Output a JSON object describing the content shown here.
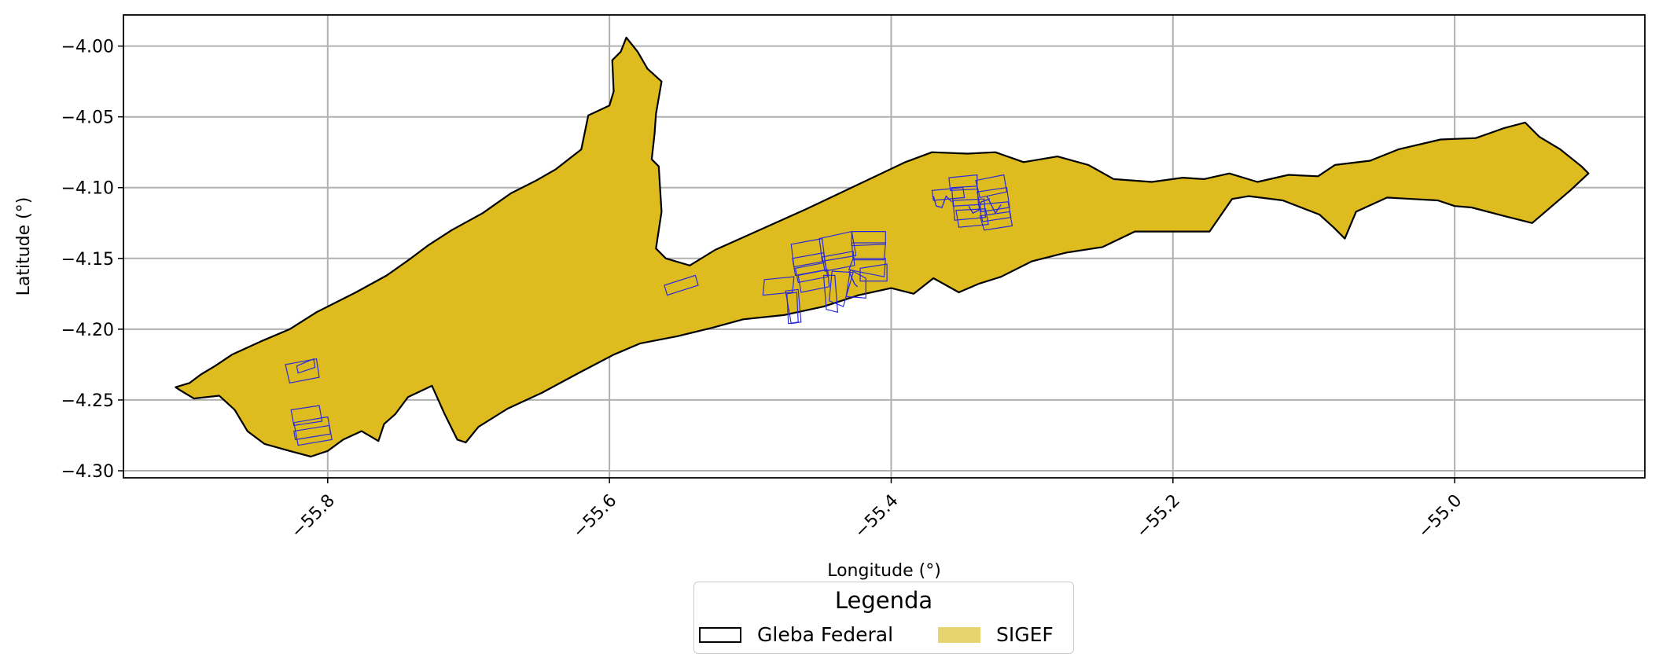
{
  "chart_data": {
    "type": "map",
    "xlabel": "Longitude (°)",
    "ylabel": "Latitude (°)",
    "xlim": [
      -55.945,
      -54.865
    ],
    "ylim": [
      -4.305,
      -3.978
    ],
    "x_ticks": [
      -55.8,
      -55.6,
      -55.4,
      -55.2,
      -55.0
    ],
    "x_tick_labels": [
      "−55.8",
      "−55.6",
      "−55.4",
      "−55.2",
      "−55.0"
    ],
    "y_ticks": [
      -4.0,
      -4.05,
      -4.1,
      -4.15,
      -4.2,
      -4.25,
      -4.3
    ],
    "y_tick_labels": [
      "−4.00",
      "−4.05",
      "−4.10",
      "−4.15",
      "−4.20",
      "−4.25",
      "−4.30"
    ],
    "grid": true,
    "legend_placement": "bottom-center",
    "legend": {
      "title": "Legenda",
      "entries": [
        {
          "label": "Gleba Federal",
          "style": "outline",
          "color": "#000000"
        },
        {
          "label": "SIGEF",
          "style": "fill",
          "color": "#e8d371"
        }
      ]
    },
    "colors": {
      "gleba_fill": "#debc1f",
      "gleba_edge": "#000000",
      "sigef_edge": "#2b2bd9",
      "grid": "#b0b0b0"
    },
    "gleba_federal": [
      [
        -55.905,
        -4.243
      ],
      [
        -55.895,
        -4.249
      ],
      [
        -55.877,
        -4.247
      ],
      [
        -55.866,
        -4.257
      ],
      [
        -55.857,
        -4.272
      ],
      [
        -55.845,
        -4.281
      ],
      [
        -55.827,
        -4.286
      ],
      [
        -55.812,
        -4.29
      ],
      [
        -55.8,
        -4.286
      ],
      [
        -55.789,
        -4.278
      ],
      [
        -55.776,
        -4.272
      ],
      [
        -55.764,
        -4.279
      ],
      [
        -55.76,
        -4.267
      ],
      [
        -55.752,
        -4.26
      ],
      [
        -55.743,
        -4.248
      ],
      [
        -55.726,
        -4.24
      ],
      [
        -55.717,
        -4.26
      ],
      [
        -55.708,
        -4.278
      ],
      [
        -55.702,
        -4.28
      ],
      [
        -55.693,
        -4.269
      ],
      [
        -55.672,
        -4.256
      ],
      [
        -55.648,
        -4.245
      ],
      [
        -55.62,
        -4.23
      ],
      [
        -55.597,
        -4.218
      ],
      [
        -55.578,
        -4.21
      ],
      [
        -55.552,
        -4.205
      ],
      [
        -55.527,
        -4.199
      ],
      [
        -55.505,
        -4.193
      ],
      [
        -55.476,
        -4.19
      ],
      [
        -55.448,
        -4.184
      ],
      [
        -55.423,
        -4.176
      ],
      [
        -55.4,
        -4.171
      ],
      [
        -55.384,
        -4.175
      ],
      [
        -55.37,
        -4.164
      ],
      [
        -55.352,
        -4.174
      ],
      [
        -55.338,
        -4.168
      ],
      [
        -55.322,
        -4.163
      ],
      [
        -55.3,
        -4.152
      ],
      [
        -55.276,
        -4.146
      ],
      [
        -55.25,
        -4.142
      ],
      [
        -55.227,
        -4.131
      ],
      [
        -55.196,
        -4.131
      ],
      [
        -55.174,
        -4.131
      ],
      [
        -55.158,
        -4.108
      ],
      [
        -55.146,
        -4.106
      ],
      [
        -55.122,
        -4.109
      ],
      [
        -55.096,
        -4.119
      ],
      [
        -55.086,
        -4.128
      ],
      [
        -55.078,
        -4.136
      ],
      [
        -55.07,
        -4.117
      ],
      [
        -55.048,
        -4.107
      ],
      [
        -55.012,
        -4.109
      ],
      [
        -55.0,
        -4.113
      ],
      [
        -54.988,
        -4.114
      ],
      [
        -54.965,
        -4.12
      ],
      [
        -54.945,
        -4.125
      ],
      [
        -54.918,
        -4.102
      ],
      [
        -54.905,
        -4.09
      ],
      [
        -54.91,
        -4.085
      ],
      [
        -54.925,
        -4.073
      ],
      [
        -54.94,
        -4.064
      ],
      [
        -54.95,
        -4.054
      ],
      [
        -54.965,
        -4.058
      ],
      [
        -54.985,
        -4.065
      ],
      [
        -55.01,
        -4.066
      ],
      [
        -55.04,
        -4.073
      ],
      [
        -55.06,
        -4.081
      ],
      [
        -55.085,
        -4.084
      ],
      [
        -55.097,
        -4.092
      ],
      [
        -55.118,
        -4.091
      ],
      [
        -55.14,
        -4.096
      ],
      [
        -55.16,
        -4.09
      ],
      [
        -55.178,
        -4.094
      ],
      [
        -55.193,
        -4.093
      ],
      [
        -55.215,
        -4.096
      ],
      [
        -55.242,
        -4.094
      ],
      [
        -55.26,
        -4.084
      ],
      [
        -55.282,
        -4.078
      ],
      [
        -55.306,
        -4.082
      ],
      [
        -55.326,
        -4.075
      ],
      [
        -55.346,
        -4.076
      ],
      [
        -55.371,
        -4.075
      ],
      [
        -55.39,
        -4.082
      ],
      [
        -55.46,
        -4.115
      ],
      [
        -55.525,
        -4.144
      ],
      [
        -55.543,
        -4.155
      ],
      [
        -55.56,
        -4.15
      ],
      [
        -55.567,
        -4.143
      ],
      [
        -55.563,
        -4.117
      ],
      [
        -55.565,
        -4.085
      ],
      [
        -55.57,
        -4.08
      ],
      [
        -55.568,
        -4.062
      ],
      [
        -55.567,
        -4.048
      ],
      [
        -55.563,
        -4.025
      ],
      [
        -55.573,
        -4.016
      ],
      [
        -55.58,
        -4.004
      ],
      [
        -55.588,
        -3.994
      ],
      [
        -55.592,
        -4.004
      ],
      [
        -55.598,
        -4.01
      ],
      [
        -55.597,
        -4.032
      ],
      [
        -55.6,
        -4.042
      ],
      [
        -55.615,
        -4.049
      ],
      [
        -55.62,
        -4.073
      ],
      [
        -55.638,
        -4.087
      ],
      [
        -55.652,
        -4.095
      ],
      [
        -55.67,
        -4.104
      ],
      [
        -55.69,
        -4.118
      ],
      [
        -55.712,
        -4.13
      ],
      [
        -55.729,
        -4.141
      ],
      [
        -55.741,
        -4.15
      ],
      [
        -55.758,
        -4.162
      ],
      [
        -55.78,
        -4.174
      ],
      [
        -55.808,
        -4.188
      ],
      [
        -55.827,
        -4.2
      ],
      [
        -55.846,
        -4.208
      ],
      [
        -55.868,
        -4.218
      ],
      [
        -55.88,
        -4.226
      ],
      [
        -55.89,
        -4.232
      ],
      [
        -55.898,
        -4.238
      ],
      [
        -55.908,
        -4.241
      ]
    ],
    "sigef_parcels": [
      [
        [
          -55.83,
          -4.225
        ],
        [
          -55.808,
          -4.221
        ],
        [
          -55.806,
          -4.234
        ],
        [
          -55.827,
          -4.238
        ]
      ],
      [
        [
          -55.822,
          -4.226
        ],
        [
          -55.81,
          -4.221
        ],
        [
          -55.809,
          -4.227
        ],
        [
          -55.821,
          -4.231
        ]
      ],
      [
        [
          -55.826,
          -4.257
        ],
        [
          -55.806,
          -4.254
        ],
        [
          -55.804,
          -4.265
        ],
        [
          -55.824,
          -4.268
        ]
      ],
      [
        [
          -55.824,
          -4.266
        ],
        [
          -55.8,
          -4.262
        ],
        [
          -55.797,
          -4.278
        ],
        [
          -55.821,
          -4.282
        ]
      ],
      [
        [
          -55.824,
          -4.272
        ],
        [
          -55.799,
          -4.268
        ],
        [
          -55.798,
          -4.274
        ],
        [
          -55.823,
          -4.278
        ]
      ],
      [
        [
          -55.561,
          -4.169
        ],
        [
          -55.539,
          -4.162
        ],
        [
          -55.537,
          -4.169
        ],
        [
          -55.559,
          -4.176
        ]
      ],
      [
        [
          -55.49,
          -4.165
        ],
        [
          -55.469,
          -4.163
        ],
        [
          -55.47,
          -4.174
        ],
        [
          -55.491,
          -4.176
        ]
      ],
      [
        [
          -55.475,
          -4.173
        ],
        [
          -55.466,
          -4.172
        ],
        [
          -55.464,
          -4.195
        ],
        [
          -55.471,
          -4.196
        ]
      ],
      [
        [
          -55.474,
          -4.175
        ],
        [
          -55.467,
          -4.174
        ],
        [
          -55.466,
          -4.195
        ],
        [
          -55.473,
          -4.196
        ]
      ],
      [
        [
          -55.471,
          -4.14
        ],
        [
          -55.449,
          -4.136
        ],
        [
          -55.447,
          -4.152
        ],
        [
          -55.469,
          -4.156
        ]
      ],
      [
        [
          -55.47,
          -4.15
        ],
        [
          -55.448,
          -4.146
        ],
        [
          -55.446,
          -4.158
        ],
        [
          -55.468,
          -4.162
        ]
      ],
      [
        [
          -55.468,
          -4.157
        ],
        [
          -55.447,
          -4.153
        ],
        [
          -55.445,
          -4.163
        ],
        [
          -55.466,
          -4.167
        ]
      ],
      [
        [
          -55.466,
          -4.162
        ],
        [
          -55.445,
          -4.158
        ],
        [
          -55.444,
          -4.17
        ],
        [
          -55.464,
          -4.174
        ]
      ],
      [
        [
          -55.451,
          -4.136
        ],
        [
          -55.428,
          -4.131
        ],
        [
          -55.425,
          -4.148
        ],
        [
          -55.449,
          -4.152
        ]
      ],
      [
        [
          -55.449,
          -4.149
        ],
        [
          -55.427,
          -4.145
        ],
        [
          -55.426,
          -4.155
        ],
        [
          -55.447,
          -4.159
        ]
      ],
      [
        [
          -55.428,
          -4.131
        ],
        [
          -55.404,
          -4.131
        ],
        [
          -55.404,
          -4.14
        ],
        [
          -55.428,
          -4.141
        ]
      ],
      [
        [
          -55.428,
          -4.139
        ],
        [
          -55.404,
          -4.139
        ],
        [
          -55.405,
          -4.151
        ],
        [
          -55.427,
          -4.151
        ]
      ],
      [
        [
          -55.427,
          -4.15
        ],
        [
          -55.404,
          -4.15
        ],
        [
          -55.405,
          -4.163
        ],
        [
          -55.43,
          -4.158
        ]
      ],
      [
        [
          -55.429,
          -4.158
        ],
        [
          -55.418,
          -4.164
        ],
        [
          -55.418,
          -4.178
        ],
        [
          -55.432,
          -4.177
        ]
      ],
      [
        [
          -55.442,
          -4.159
        ],
        [
          -55.427,
          -4.16
        ],
        [
          -55.434,
          -4.184
        ],
        [
          -55.444,
          -4.18
        ]
      ],
      [
        [
          -55.448,
          -4.162
        ],
        [
          -55.44,
          -4.162
        ],
        [
          -55.438,
          -4.188
        ],
        [
          -55.446,
          -4.186
        ]
      ],
      [
        [
          -55.422,
          -4.157
        ],
        [
          -55.403,
          -4.154
        ],
        [
          -55.403,
          -4.166
        ],
        [
          -55.422,
          -4.166
        ]
      ],
      [
        [
          -55.371,
          -4.102
        ],
        [
          -55.349,
          -4.1
        ],
        [
          -55.348,
          -4.107
        ],
        [
          -55.37,
          -4.109
        ]
      ],
      [
        [
          -55.359,
          -4.093
        ],
        [
          -55.339,
          -4.091
        ],
        [
          -55.339,
          -4.101
        ],
        [
          -55.358,
          -4.102
        ]
      ],
      [
        [
          -55.357,
          -4.1
        ],
        [
          -55.339,
          -4.099
        ],
        [
          -55.338,
          -4.112
        ],
        [
          -55.356,
          -4.113
        ]
      ],
      [
        [
          -55.356,
          -4.109
        ],
        [
          -55.334,
          -4.108
        ],
        [
          -55.333,
          -4.121
        ],
        [
          -55.355,
          -4.123
        ]
      ],
      [
        [
          -55.354,
          -4.116
        ],
        [
          -55.333,
          -4.115
        ],
        [
          -55.331,
          -4.126
        ],
        [
          -55.352,
          -4.128
        ]
      ],
      [
        [
          -55.34,
          -4.095
        ],
        [
          -55.32,
          -4.091
        ],
        [
          -55.318,
          -4.103
        ],
        [
          -55.337,
          -4.107
        ]
      ],
      [
        [
          -55.339,
          -4.103
        ],
        [
          -55.318,
          -4.1
        ],
        [
          -55.316,
          -4.114
        ],
        [
          -55.336,
          -4.117
        ]
      ],
      [
        [
          -55.338,
          -4.112
        ],
        [
          -55.317,
          -4.11
        ],
        [
          -55.315,
          -4.121
        ],
        [
          -55.335,
          -4.124
        ]
      ],
      [
        [
          -55.337,
          -4.12
        ],
        [
          -55.316,
          -4.117
        ],
        [
          -55.314,
          -4.127
        ],
        [
          -55.334,
          -4.13
        ]
      ]
    ],
    "sigef_lines": [
      [
        [
          -55.37,
          -4.106
        ],
        [
          -55.368,
          -4.113
        ],
        [
          -55.364,
          -4.114
        ],
        [
          -55.361,
          -4.106
        ],
        [
          -55.357,
          -4.11
        ]
      ],
      [
        [
          -55.345,
          -4.113
        ],
        [
          -55.342,
          -4.118
        ],
        [
          -55.338,
          -4.116
        ],
        [
          -55.336,
          -4.11
        ],
        [
          -55.33,
          -4.108
        ]
      ],
      [
        [
          -55.332,
          -4.106
        ],
        [
          -55.329,
          -4.112
        ],
        [
          -55.326,
          -4.118
        ],
        [
          -55.322,
          -4.112
        ]
      ],
      [
        [
          -55.43,
          -4.159
        ],
        [
          -55.426,
          -4.168
        ],
        [
          -55.424,
          -4.17
        ]
      ]
    ]
  }
}
